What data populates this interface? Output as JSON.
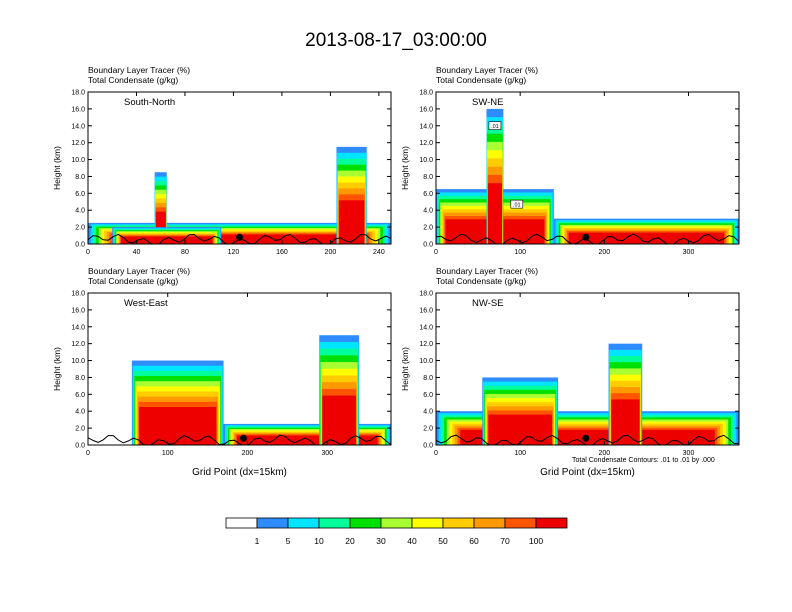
{
  "figure": {
    "title": "2013-08-17_03:00:00"
  },
  "chart_data": [
    {
      "type": "heatmap",
      "panel_label": "South-North",
      "subtitles": [
        "Boundary Layer Tracer    (%)",
        "Total Condensate    (g/kg)"
      ],
      "ylabel": "Height (km)",
      "xlabel": "",
      "xlim": [
        0,
        250
      ],
      "ylim": [
        0,
        18
      ],
      "xticks": [
        "0",
        "40",
        "80",
        "120",
        "160",
        "200",
        "240"
      ],
      "yticks": [
        "0.0",
        "2.0",
        "4.0",
        "6.0",
        "8.0",
        "10.0",
        "12.0",
        "14.0",
        "16.0",
        "18.0"
      ],
      "marker_x": 125,
      "tracer_bands": [
        {
          "x0": 0,
          "x1": 250,
          "top": 2.5,
          "level": 30
        },
        {
          "x0": 55,
          "x1": 65,
          "top": 8.5,
          "level": 20
        },
        {
          "x0": 205,
          "x1": 230,
          "top": 11.5,
          "level": 20
        },
        {
          "x0": 20,
          "x1": 110,
          "top": 2.0,
          "level": 70
        }
      ],
      "contour_labels": []
    },
    {
      "type": "heatmap",
      "panel_label": "SW-NE",
      "subtitles": [
        "Boundary Layer Tracer    (%)",
        "Total Condensate    (g/kg)"
      ],
      "ylabel": "Height (km)",
      "xlabel": "",
      "xlim": [
        0,
        360
      ],
      "ylim": [
        0,
        18
      ],
      "xticks": [
        "0",
        "100",
        "200",
        "300"
      ],
      "yticks": [
        "0.0",
        "2.0",
        "4.0",
        "6.0",
        "8.0",
        "10.0",
        "12.0",
        "14.0",
        "16.0",
        "18.0"
      ],
      "marker_x": 178,
      "tracer_bands": [
        {
          "x0": 0,
          "x1": 140,
          "top": 6.5,
          "level": 20
        },
        {
          "x0": 60,
          "x1": 80,
          "top": 16.0,
          "level": 40
        },
        {
          "x0": 140,
          "x1": 360,
          "top": 3.0,
          "level": 30
        }
      ],
      "contour_labels": [
        ".01",
        ".01"
      ]
    },
    {
      "type": "heatmap",
      "panel_label": "West-East",
      "subtitles": [
        "Boundary Layer Tracer    (%)",
        "Total Condensate    (g/kg)"
      ],
      "ylabel": "Height (km)",
      "xlabel": "Grid Point (dx=15km)",
      "xlim": [
        0,
        380
      ],
      "ylim": [
        0,
        18
      ],
      "xticks": [
        "0",
        "100",
        "200",
        "300"
      ],
      "yticks": [
        "0.0",
        "2.0",
        "4.0",
        "6.0",
        "8.0",
        "10.0",
        "12.0",
        "14.0",
        "16.0",
        "18.0"
      ],
      "marker_x": 195,
      "tracer_bands": [
        {
          "x0": 55,
          "x1": 170,
          "top": 10.0,
          "level": 30
        },
        {
          "x0": 170,
          "x1": 380,
          "top": 2.5,
          "level": 30
        },
        {
          "x0": 290,
          "x1": 340,
          "top": 13.0,
          "level": 10
        }
      ],
      "contour_labels": []
    },
    {
      "type": "heatmap",
      "panel_label": "NW-SE",
      "subtitles": [
        "Boundary Layer Tracer    (%)",
        "Total Condensate    (g/kg)"
      ],
      "ylabel": "Height (km)",
      "xlabel": "Grid Point (dx=15km)",
      "xlim": [
        0,
        360
      ],
      "ylim": [
        0,
        18
      ],
      "xticks": [
        "0",
        "100",
        "200",
        "300"
      ],
      "yticks": [
        "0.0",
        "2.0",
        "4.0",
        "6.0",
        "8.0",
        "10.0",
        "12.0",
        "14.0",
        "16.0",
        "18.0"
      ],
      "marker_x": 178,
      "tracer_bands": [
        {
          "x0": 0,
          "x1": 360,
          "top": 4.0,
          "level": 30
        },
        {
          "x0": 55,
          "x1": 145,
          "top": 8.0,
          "level": 30
        },
        {
          "x0": 205,
          "x1": 245,
          "top": 12.0,
          "level": 40
        }
      ],
      "contour_labels": []
    }
  ],
  "colorbar": {
    "levels": [
      "1",
      "5",
      "10",
      "20",
      "30",
      "40",
      "50",
      "60",
      "70",
      "100"
    ],
    "colors": [
      "#ffffff",
      "#2f8cff",
      "#00e5ff",
      "#00ff9a",
      "#00e000",
      "#aaff33",
      "#ffff00",
      "#ffcc00",
      "#ff9900",
      "#ff5500",
      "#ee0000"
    ]
  },
  "footnote": "Total Condensate Contours: .01 to .01 by .000"
}
